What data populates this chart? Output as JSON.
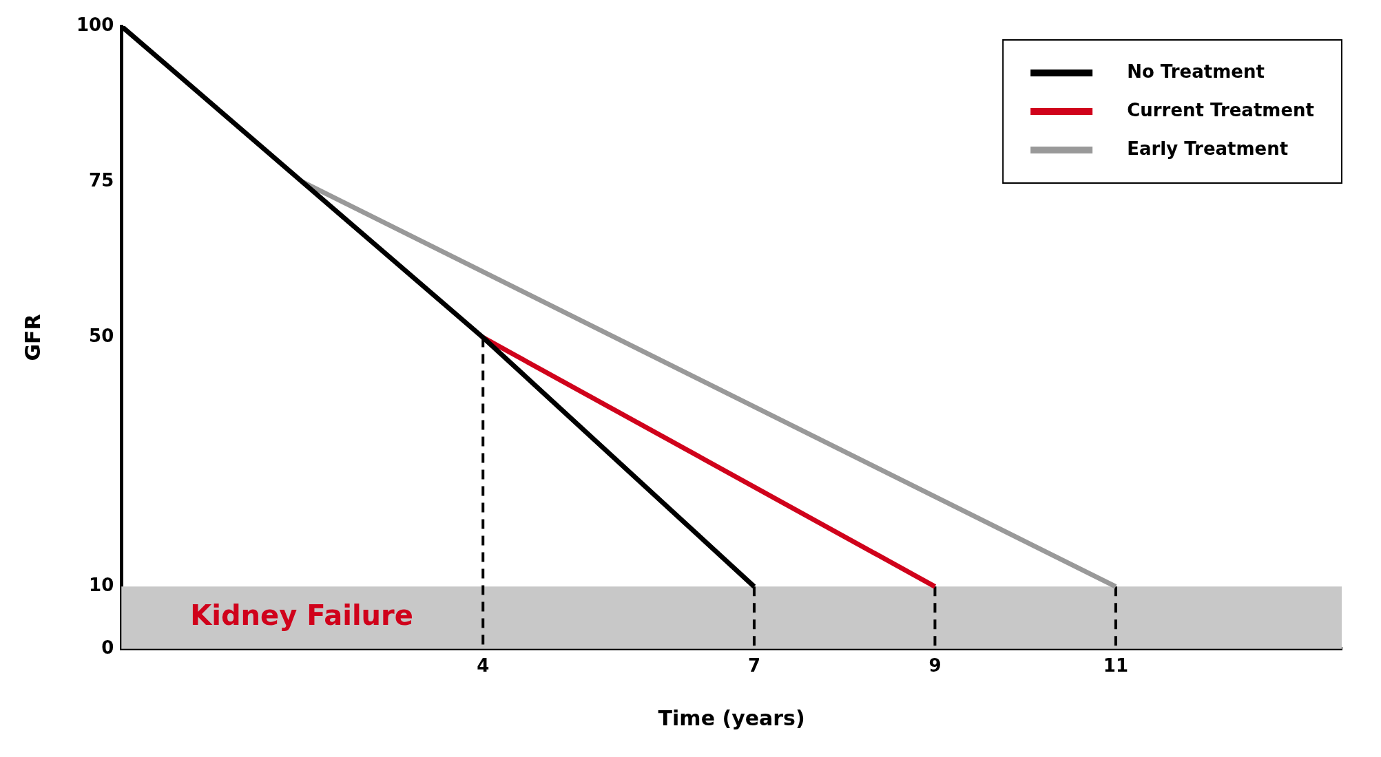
{
  "chart_data": {
    "type": "line",
    "xlabel": "Time (years)",
    "ylabel": "GFR",
    "xlim": [
      0,
      13.5
    ],
    "ylim": [
      0,
      100
    ],
    "xticks": [
      4,
      7,
      9,
      11
    ],
    "yticks": [
      0,
      10,
      50,
      75,
      100
    ],
    "grid": false,
    "legend": "top right",
    "marker": "none",
    "series": [
      {
        "name": "No Treatment",
        "color": "#000000",
        "x": [
          0,
          4,
          7
        ],
        "values": [
          100,
          50,
          10
        ]
      },
      {
        "name": "Current Treatment",
        "color": "#d0021b",
        "x": [
          4,
          9
        ],
        "values": [
          50,
          10
        ]
      },
      {
        "name": "Early Treatment",
        "color": "#999999",
        "x": [
          2,
          11
        ],
        "values": [
          75,
          10
        ]
      },
      {
        "color": "#000000",
        "line_style": "dashed",
        "x": [
          4,
          4
        ],
        "values": [
          50,
          0
        ]
      },
      {
        "color": "#000000",
        "line_style": "dashed",
        "x": [
          7,
          7
        ],
        "values": [
          10,
          0
        ]
      },
      {
        "color": "#000000",
        "line_style": "dashed",
        "x": [
          9,
          9
        ],
        "values": [
          10,
          0
        ]
      },
      {
        "color": "#000000",
        "line_style": "dashed",
        "x": [
          11,
          11
        ],
        "values": [
          10,
          0
        ]
      }
    ],
    "bands": [
      {
        "axis": "y",
        "from": 0,
        "to": 10,
        "label": "Kidney Failure",
        "color": "#c8c8c8"
      }
    ]
  }
}
